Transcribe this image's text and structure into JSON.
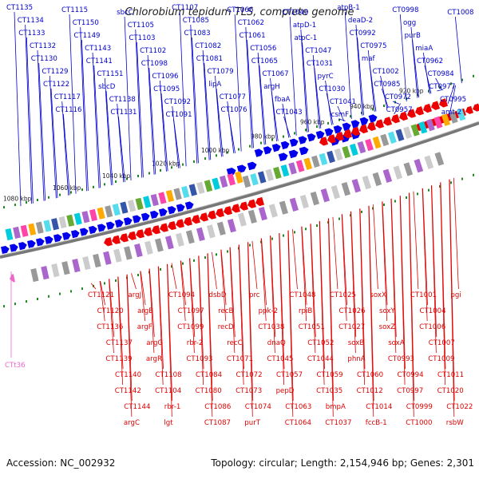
{
  "title": "Chlorobium tepidum TLS, complete genome",
  "footer": {
    "accession": "Accession: NC_002932",
    "topology": "Topology: circular; Length: 2,154,946 bp; Genes: 2,301"
  },
  "colors": {
    "forward": "#0000ee",
    "reverse": "#ee0000",
    "rna": "#ee66cc",
    "backbone": "#888888",
    "dots": "#228822"
  },
  "ticks": [
    "1080 kbp",
    "1060 kbp",
    "1040 kbp",
    "1020 kbp",
    "1000 kbp",
    "980 kbp",
    "960 kbp",
    "940 kbp",
    "920 kbp"
  ],
  "top_labels": [
    "CT1135",
    "CT1134",
    "CT1133",
    "CT1132",
    "CT1130",
    "CT1129",
    "CT1122",
    "CT1117",
    "CT1116",
    "CT1115",
    "CT1150",
    "CT1149",
    "CT1143",
    "CT1141",
    "CT1151",
    "sbcD",
    "CT1138",
    "CT1131",
    "sbcC",
    "CT1105",
    "CT1103",
    "CT1102",
    "CT1098",
    "CT1096",
    "CT1095",
    "CT1092",
    "CT1091",
    "CT1107",
    "CT1085",
    "CT1083",
    "CT1082",
    "CT1081",
    "CT1079",
    "lipA",
    "CT1077",
    "CT1076",
    "CT1066",
    "CT1062",
    "CT1061",
    "CT1056",
    "CT1065",
    "CT1067",
    "argH",
    "fbaA",
    "CT1043",
    "CT1040",
    "atpD-1",
    "atpC-1",
    "CT1047",
    "CT1031",
    "pyrC",
    "CT1030",
    "CT1041",
    "csmF",
    "atpB-1",
    "deaD-2",
    "CT0992",
    "CT0975",
    "maf",
    "CT1002",
    "CT0985",
    "CT0972",
    "CT0957",
    "CT0998",
    "ogg",
    "purB",
    "miaA",
    "CT0962",
    "CT0984",
    "CT0977",
    "CT0995",
    "amt-2",
    "CT1008"
  ],
  "bottom_labels": [
    "CT1121",
    "CT1120",
    "CT1136",
    "CT1137",
    "CT1139",
    "CT1140",
    "CT1142",
    "CT1144",
    "argC",
    "argJ",
    "argB",
    "argF",
    "argG",
    "argR",
    "CT1108",
    "CT1104",
    "rbr-1",
    "lgt",
    "CT1094",
    "CT1097",
    "CT1099",
    "rbr-2",
    "CT1093",
    "CT1084",
    "CT1080",
    "CT1086",
    "CT1087",
    "dsbD",
    "recB",
    "recD",
    "recC",
    "CT1071",
    "CT1072",
    "CT1073",
    "CT1074",
    "purT",
    "prc",
    "ppk-2",
    "CT1038",
    "dnaQ",
    "CT1045",
    "CT1057",
    "pepD",
    "CT1063",
    "CT1064",
    "CT1048",
    "rpiB",
    "CT1051",
    "CT1052",
    "CT1044",
    "CT1059",
    "CT1035",
    "bmpA",
    "CT1037",
    "CT1025",
    "CT1026",
    "CT1027",
    "soxB",
    "phnA",
    "CT1060",
    "CT1012",
    "CT1014",
    "fccB-1",
    "soxX",
    "soxY",
    "soxZ",
    "soxA",
    "CT0993",
    "CT0994",
    "CT0997",
    "CT0999",
    "CT1000",
    "CT1001",
    "CT1004",
    "CT1006",
    "CT1007",
    "CT1009",
    "CT1011",
    "CT1020",
    "CT1022",
    "rsbW",
    "pgi"
  ],
  "rna_labels": [
    "CTt36"
  ]
}
